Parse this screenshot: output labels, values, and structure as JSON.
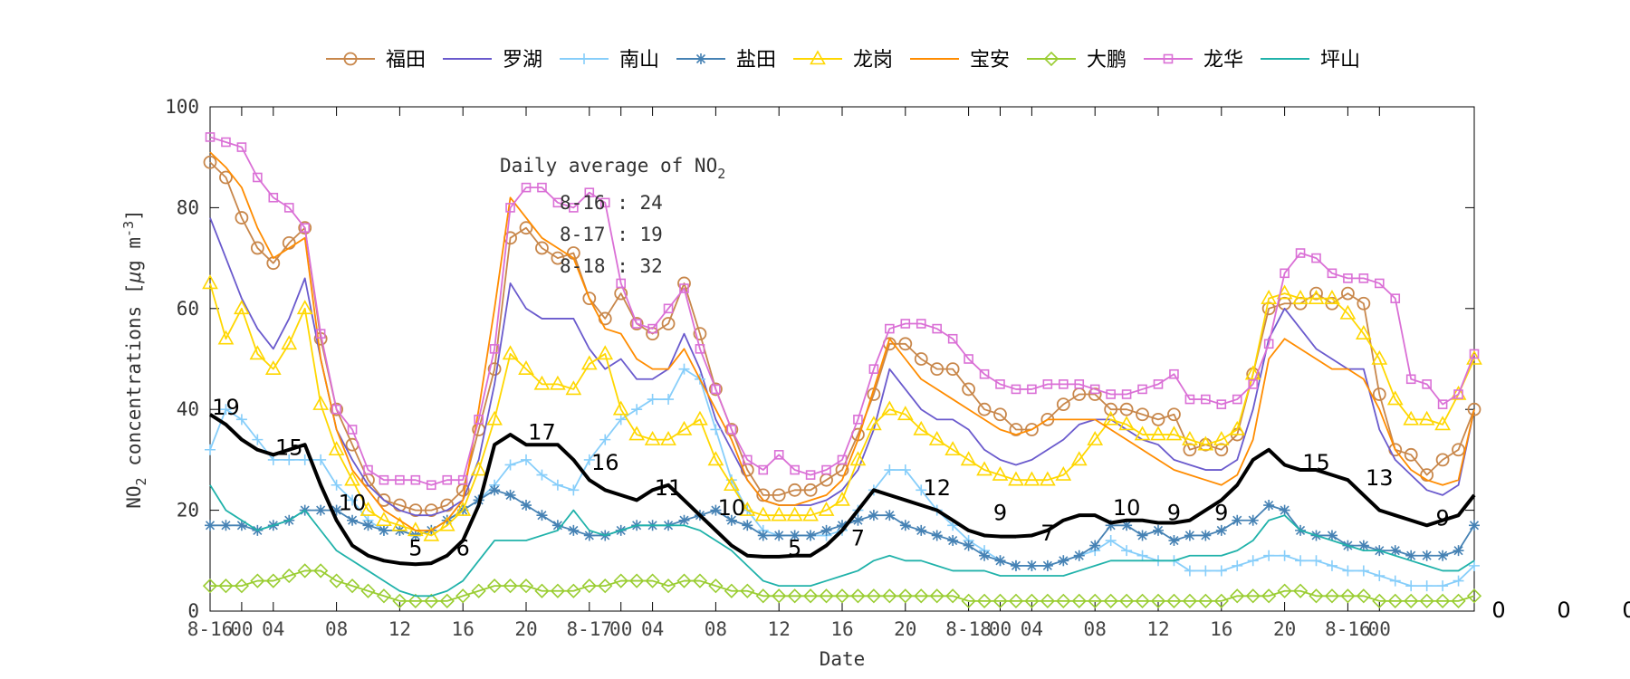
{
  "chart_data": {
    "type": "line",
    "title": "",
    "xlabel": "Date",
    "ylabel_parts": {
      "pre": "NO",
      "sub": "2",
      "mid": " concentrations [",
      "mu": "μ",
      "unit": "g m",
      "sup": "-3",
      "end": "]"
    },
    "ylim": [
      0,
      100
    ],
    "yticks": [
      0,
      20,
      40,
      60,
      80,
      100
    ],
    "xlim": [
      0,
      72
    ],
    "xticks": [
      {
        "x": 0,
        "label": "8-16"
      },
      {
        "x": 2,
        "label": "00"
      },
      {
        "x": 4,
        "label": "04"
      },
      {
        "x": 8,
        "label": "08"
      },
      {
        "x": 12,
        "label": "12"
      },
      {
        "x": 16,
        "label": "16"
      },
      {
        "x": 20,
        "label": "20"
      },
      {
        "x": 24,
        "label": "8-17"
      },
      {
        "x": 26,
        "label": "00"
      },
      {
        "x": 28,
        "label": "04"
      },
      {
        "x": 32,
        "label": "08"
      },
      {
        "x": 36,
        "label": "12"
      },
      {
        "x": 40,
        "label": "16"
      },
      {
        "x": 44,
        "label": "20"
      },
      {
        "x": 48,
        "label": "8-18"
      },
      {
        "x": 50,
        "label": "00"
      },
      {
        "x": 52,
        "label": "04"
      },
      {
        "x": 56,
        "label": "08"
      },
      {
        "x": 60,
        "label": "12"
      },
      {
        "x": 64,
        "label": "16"
      },
      {
        "x": 68,
        "label": "20"
      },
      {
        "x": 72,
        "label": "8-16"
      },
      {
        "x": 74,
        "label": "00"
      }
    ],
    "grid": false,
    "legend_position": "top",
    "annotation": {
      "title_pre": "Daily average of NO",
      "title_sub": "2",
      "lines": [
        "8-16 : 24",
        "8-17 : 19",
        "8-18 : 32"
      ]
    },
    "right_labels": [
      "0",
      "0",
      "0"
    ],
    "series": [
      {
        "name": "福田",
        "color": "#c8874b",
        "marker": "circle",
        "values": [
          89,
          86,
          78,
          72,
          69,
          73,
          76,
          54,
          40,
          33,
          26,
          22,
          21,
          20,
          20,
          21,
          24,
          36,
          48,
          74,
          76,
          72,
          70,
          71,
          62,
          58,
          63,
          57,
          55,
          57,
          65,
          55,
          44,
          36,
          28,
          23,
          23,
          24,
          24,
          26,
          28,
          35,
          43,
          53,
          53,
          50,
          48,
          48,
          44,
          40,
          39,
          36,
          36,
          38,
          41,
          43,
          43,
          40,
          40,
          39,
          38,
          39,
          32,
          33,
          32,
          35,
          47,
          60,
          61,
          61,
          63,
          61,
          63,
          61,
          43,
          32,
          31,
          27,
          30,
          32,
          40
        ]
      },
      {
        "name": "罗湖",
        "color": "#6a5acd",
        "marker": "none",
        "values": [
          78,
          70,
          62,
          56,
          52,
          58,
          66,
          50,
          36,
          30,
          25,
          22,
          20,
          19,
          19,
          20,
          22,
          30,
          45,
          65,
          60,
          58,
          58,
          58,
          52,
          48,
          50,
          46,
          46,
          48,
          55,
          48,
          38,
          32,
          26,
          22,
          21,
          21,
          21,
          22,
          24,
          28,
          36,
          48,
          44,
          40,
          38,
          38,
          36,
          32,
          30,
          29,
          30,
          32,
          34,
          37,
          38,
          38,
          36,
          34,
          33,
          30,
          29,
          28,
          28,
          30,
          40,
          54,
          60,
          56,
          52,
          50,
          48,
          48,
          36,
          30,
          27,
          24,
          23,
          25,
          40
        ]
      },
      {
        "name": "南山",
        "color": "#87cefa",
        "marker": "plus",
        "values": [
          32,
          40,
          38,
          34,
          30,
          30,
          30,
          30,
          25,
          22,
          18,
          16,
          16,
          15,
          16,
          18,
          20,
          22,
          25,
          29,
          30,
          27,
          25,
          24,
          30,
          34,
          38,
          40,
          42,
          42,
          48,
          46,
          36,
          26,
          20,
          16,
          15,
          15,
          15,
          15,
          16,
          20,
          24,
          28,
          28,
          24,
          20,
          17,
          14,
          12,
          10,
          9,
          9,
          9,
          10,
          11,
          12,
          14,
          12,
          11,
          10,
          10,
          8,
          8,
          8,
          9,
          10,
          11,
          11,
          10,
          10,
          9,
          8,
          8,
          7,
          6,
          5,
          5,
          5,
          6,
          9
        ]
      },
      {
        "name": "盐田",
        "color": "#4682b4",
        "marker": "star",
        "values": [
          17,
          17,
          17,
          16,
          17,
          18,
          20,
          20,
          20,
          18,
          17,
          16,
          16,
          15,
          16,
          18,
          20,
          22,
          24,
          23,
          21,
          19,
          17,
          16,
          15,
          15,
          16,
          17,
          17,
          17,
          18,
          19,
          20,
          18,
          17,
          15,
          15,
          15,
          15,
          16,
          17,
          18,
          19,
          19,
          17,
          16,
          15,
          14,
          13,
          11,
          10,
          9,
          9,
          9,
          10,
          11,
          13,
          17,
          17,
          15,
          16,
          14,
          15,
          15,
          16,
          18,
          18,
          21,
          20,
          16,
          15,
          15,
          13,
          13,
          12,
          12,
          11,
          11,
          11,
          12,
          17
        ]
      },
      {
        "name": "龙岗",
        "color": "#ffd700",
        "marker": "triangle",
        "values": [
          65,
          54,
          60,
          51,
          48,
          53,
          60,
          41,
          32,
          26,
          20,
          18,
          17,
          16,
          15,
          17,
          20,
          28,
          38,
          51,
          48,
          45,
          45,
          44,
          49,
          51,
          40,
          35,
          34,
          34,
          36,
          38,
          30,
          25,
          20,
          19,
          19,
          19,
          19,
          20,
          22,
          30,
          37,
          40,
          39,
          36,
          34,
          32,
          30,
          28,
          27,
          26,
          26,
          26,
          27,
          30,
          34,
          38,
          37,
          35,
          35,
          35,
          34,
          33,
          34,
          36,
          47,
          62,
          63,
          62,
          62,
          62,
          59,
          55,
          50,
          42,
          38,
          38,
          37,
          43,
          50
        ]
      },
      {
        "name": "宝安",
        "color": "#ff8c00",
        "marker": "none",
        "values": [
          91,
          88,
          84,
          76,
          70,
          72,
          74,
          50,
          36,
          28,
          24,
          20,
          18,
          16,
          16,
          18,
          22,
          40,
          60,
          82,
          78,
          74,
          72,
          70,
          62,
          56,
          55,
          50,
          48,
          48,
          52,
          46,
          40,
          34,
          26,
          22,
          21,
          21,
          22,
          23,
          26,
          34,
          44,
          54,
          50,
          46,
          44,
          42,
          40,
          38,
          36,
          35,
          36,
          38,
          38,
          38,
          38,
          36,
          34,
          32,
          30,
          28,
          27,
          26,
          25,
          27,
          34,
          50,
          54,
          52,
          50,
          48,
          48,
          46,
          40,
          32,
          28,
          26,
          25,
          26,
          40
        ]
      },
      {
        "name": "大鹏",
        "color": "#9acd32",
        "marker": "diamond",
        "values": [
          5,
          5,
          5,
          6,
          6,
          7,
          8,
          8,
          6,
          5,
          4,
          3,
          2,
          2,
          2,
          2,
          3,
          4,
          5,
          5,
          5,
          4,
          4,
          4,
          5,
          5,
          6,
          6,
          6,
          5,
          6,
          6,
          5,
          4,
          4,
          3,
          3,
          3,
          3,
          3,
          3,
          3,
          3,
          3,
          3,
          3,
          3,
          3,
          2,
          2,
          2,
          2,
          2,
          2,
          2,
          2,
          2,
          2,
          2,
          2,
          2,
          2,
          2,
          2,
          2,
          3,
          3,
          3,
          4,
          4,
          3,
          3,
          3,
          3,
          2,
          2,
          2,
          2,
          2,
          2,
          3
        ]
      },
      {
        "name": "龙华",
        "color": "#da70d6",
        "marker": "square",
        "values": [
          94,
          93,
          92,
          86,
          82,
          80,
          76,
          55,
          40,
          36,
          28,
          26,
          26,
          26,
          25,
          26,
          26,
          38,
          52,
          80,
          84,
          84,
          81,
          80,
          83,
          81,
          65,
          57,
          56,
          60,
          64,
          52,
          44,
          36,
          30,
          28,
          31,
          28,
          27,
          28,
          30,
          38,
          48,
          56,
          57,
          57,
          56,
          54,
          50,
          47,
          45,
          44,
          44,
          45,
          45,
          45,
          44,
          43,
          43,
          44,
          45,
          47,
          42,
          42,
          41,
          42,
          45,
          53,
          67,
          71,
          70,
          67,
          66,
          66,
          65,
          62,
          46,
          45,
          41,
          43,
          51
        ]
      },
      {
        "name": "坪山",
        "color": "#20b2aa",
        "marker": "none",
        "values": [
          25,
          20,
          18,
          16,
          17,
          18,
          20,
          16,
          12,
          10,
          8,
          6,
          4,
          3,
          3,
          4,
          6,
          10,
          14,
          14,
          14,
          15,
          16,
          20,
          16,
          15,
          16,
          17,
          17,
          17,
          17,
          16,
          14,
          12,
          9,
          6,
          5,
          5,
          5,
          6,
          7,
          8,
          10,
          11,
          10,
          10,
          9,
          8,
          8,
          8,
          7,
          7,
          7,
          7,
          7,
          8,
          9,
          10,
          10,
          10,
          10,
          10,
          11,
          11,
          11,
          12,
          14,
          18,
          19,
          16,
          15,
          14,
          13,
          12,
          12,
          11,
          10,
          9,
          8,
          8,
          10
        ]
      },
      {
        "name": "",
        "color": "#000000",
        "marker": "none",
        "bold": true,
        "values": [
          39,
          37,
          34,
          32,
          31,
          32,
          33,
          25,
          18,
          13,
          11,
          10,
          9.5,
          9.3,
          9.5,
          11,
          14,
          21,
          33,
          35,
          33,
          33,
          33,
          30,
          26,
          24,
          23,
          22,
          24,
          25,
          22,
          19,
          16,
          13,
          11,
          10.8,
          10.8,
          11,
          11,
          13,
          16,
          20,
          24,
          23,
          22,
          21,
          20,
          18,
          16,
          15,
          14.8,
          14.8,
          15,
          16,
          18,
          19,
          19,
          17.5,
          18,
          18,
          17.5,
          17.5,
          18,
          20,
          22,
          25,
          30,
          32,
          29,
          28,
          28,
          27,
          26,
          23,
          20,
          19,
          18,
          17,
          18,
          19,
          23
        ]
      }
    ],
    "bold_labels": [
      {
        "x": 1,
        "y": 39,
        "text": "19"
      },
      {
        "x": 5,
        "y": 31,
        "text": "15"
      },
      {
        "x": 9,
        "y": 20,
        "text": "10"
      },
      {
        "x": 13,
        "y": 11,
        "text": "5"
      },
      {
        "x": 16,
        "y": 11,
        "text": "6"
      },
      {
        "x": 21,
        "y": 34,
        "text": "17"
      },
      {
        "x": 25,
        "y": 28,
        "text": "16"
      },
      {
        "x": 29,
        "y": 23,
        "text": "11"
      },
      {
        "x": 33,
        "y": 19,
        "text": "10"
      },
      {
        "x": 37,
        "y": 11,
        "text": "5"
      },
      {
        "x": 41,
        "y": 13,
        "text": "7"
      },
      {
        "x": 46,
        "y": 23,
        "text": "12"
      },
      {
        "x": 50,
        "y": 18,
        "text": "9"
      },
      {
        "x": 53,
        "y": 14,
        "text": "7"
      },
      {
        "x": 58,
        "y": 19,
        "text": "10"
      },
      {
        "x": 61,
        "y": 18,
        "text": "9"
      },
      {
        "x": 64,
        "y": 18,
        "text": "9"
      },
      {
        "x": 70,
        "y": 28,
        "text": "15"
      },
      {
        "x": 74,
        "y": 25,
        "text": "13"
      },
      {
        "x": 78,
        "y": 17,
        "text": "9"
      }
    ]
  }
}
